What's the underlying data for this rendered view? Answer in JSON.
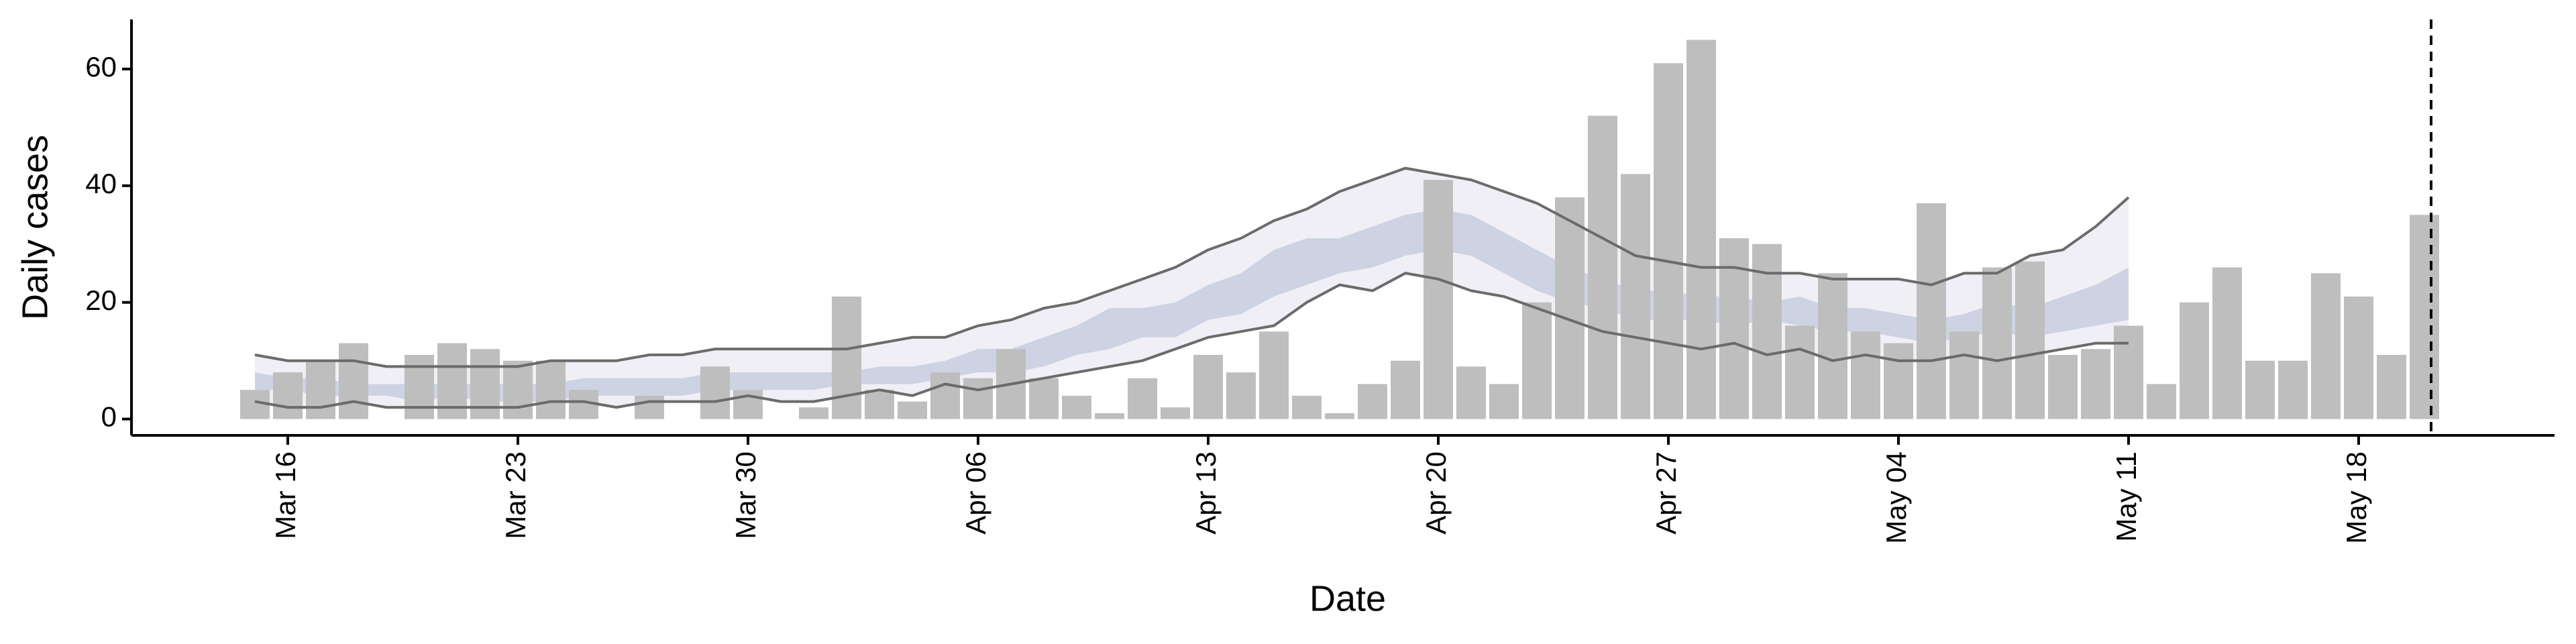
{
  "chart_data": {
    "type": "bar",
    "x_label": "Date",
    "y_label": "Daily cases",
    "x": [
      "Mar 15",
      "Mar 16",
      "Mar 17",
      "Mar 18",
      "Mar 19",
      "Mar 20",
      "Mar 21",
      "Mar 22",
      "Mar 23",
      "Mar 24",
      "Mar 25",
      "Mar 26",
      "Mar 27",
      "Mar 28",
      "Mar 29",
      "Mar 30",
      "Mar 31",
      "Apr 01",
      "Apr 02",
      "Apr 03",
      "Apr 04",
      "Apr 05",
      "Apr 06",
      "Apr 07",
      "Apr 08",
      "Apr 09",
      "Apr 10",
      "Apr 11",
      "Apr 12",
      "Apr 13",
      "Apr 14",
      "Apr 15",
      "Apr 16",
      "Apr 17",
      "Apr 18",
      "Apr 19",
      "Apr 20",
      "Apr 21",
      "Apr 22",
      "Apr 23",
      "Apr 24",
      "Apr 25",
      "Apr 26",
      "Apr 27",
      "Apr 28",
      "Apr 29",
      "Apr 30",
      "May 01",
      "May 02",
      "May 03",
      "May 04",
      "May 05",
      "May 06",
      "May 07",
      "May 08",
      "May 09",
      "May 10",
      "May 11",
      "May 12",
      "May 13",
      "May 14",
      "May 15",
      "May 16",
      "May 17",
      "May 18",
      "May 19",
      "May 20"
    ],
    "values": [
      5,
      8,
      10,
      13,
      0,
      11,
      13,
      12,
      10,
      10,
      5,
      0,
      4,
      0,
      9,
      5,
      0,
      2,
      21,
      5,
      3,
      8,
      7,
      12,
      7,
      4,
      1,
      7,
      2,
      11,
      8,
      15,
      4,
      1,
      6,
      10,
      41,
      9,
      6,
      20,
      38,
      52,
      42,
      61,
      65,
      31,
      30,
      16,
      25,
      15,
      13,
      37,
      15,
      26,
      27,
      11,
      12,
      16,
      6,
      20,
      26,
      10,
      10,
      25,
      21,
      11,
      35
    ],
    "color": "#bebebe",
    "bands": [
      {
        "color": "#e9eaf2",
        "line_color": "#6b6b6b",
        "lower": [
          3,
          2,
          2,
          3,
          2,
          2,
          2,
          2,
          2,
          3,
          3,
          2,
          3,
          3,
          3,
          4,
          3,
          3,
          4,
          5,
          4,
          6,
          5,
          6,
          7,
          8,
          9,
          10,
          12,
          14,
          15,
          16,
          20,
          23,
          22,
          25,
          24,
          22,
          21,
          19,
          17,
          15,
          14,
          13,
          12,
          13,
          11,
          12,
          10,
          11,
          10,
          10,
          11,
          10,
          11,
          12,
          13,
          13,
          null,
          null,
          null,
          null,
          null,
          null,
          null,
          null,
          null
        ],
        "upper": [
          11,
          10,
          10,
          10,
          9,
          9,
          9,
          9,
          9,
          10,
          10,
          10,
          11,
          11,
          12,
          12,
          12,
          12,
          12,
          13,
          14,
          14,
          16,
          17,
          19,
          20,
          22,
          24,
          26,
          29,
          31,
          34,
          36,
          39,
          41,
          43,
          42,
          41,
          39,
          37,
          34,
          31,
          28,
          27,
          26,
          26,
          25,
          25,
          24,
          24,
          24,
          23,
          25,
          25,
          28,
          29,
          33,
          38,
          null,
          null,
          null,
          null,
          null,
          null,
          null,
          null,
          null
        ]
      },
      {
        "color": "#c3c9dc",
        "lower": [
          5,
          5,
          4,
          4,
          4,
          3,
          4,
          3,
          3,
          3,
          4,
          4,
          4,
          4,
          5,
          5,
          5,
          5,
          6,
          6,
          6,
          7,
          8,
          8,
          9,
          11,
          12,
          14,
          14,
          17,
          18,
          21,
          23,
          25,
          26,
          28,
          29,
          28,
          25,
          22,
          20,
          19,
          17,
          17,
          17,
          16,
          17,
          16,
          15,
          15,
          14,
          13,
          14,
          15,
          14,
          15,
          16,
          17,
          null,
          null,
          null,
          null,
          null,
          null,
          null,
          null,
          null
        ],
        "upper": [
          8,
          7,
          7,
          6,
          6,
          6,
          6,
          6,
          6,
          6,
          7,
          7,
          7,
          7,
          8,
          8,
          8,
          8,
          8,
          9,
          9,
          10,
          12,
          12,
          14,
          16,
          19,
          19,
          20,
          23,
          25,
          29,
          31,
          31,
          33,
          35,
          36,
          35,
          32,
          29,
          26,
          24,
          22,
          22,
          21,
          21,
          20,
          21,
          19,
          19,
          18,
          17,
          18,
          20,
          19,
          21,
          23,
          26,
          null,
          null,
          null,
          null,
          null,
          null,
          null,
          null,
          null
        ]
      }
    ],
    "vline": "May 20",
    "ylim": [
      -2.8,
      68.5
    ],
    "yticks": [
      0,
      20,
      40,
      60
    ],
    "xticks": [
      "Mar 16",
      "Mar 23",
      "Mar 30",
      "Apr 06",
      "Apr 13",
      "Apr 20",
      "Apr 27",
      "May 04",
      "May 11",
      "May 18"
    ]
  }
}
